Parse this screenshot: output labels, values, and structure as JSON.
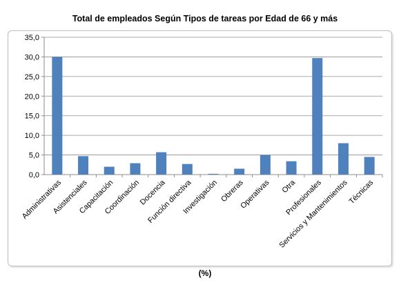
{
  "chart_data": {
    "type": "bar",
    "title": "Total de empleados Según Tipos de tareas por Edad de 66 y más",
    "categories": [
      "Administrativas",
      "Asistenciales",
      "Capacitación",
      "Coordinación",
      "Docencia",
      "Función directiva",
      "Investigación",
      "Obreras",
      "Operativas",
      "Otra",
      "Profesionales",
      "Servicios y Mantenimientos",
      "Técnicas"
    ],
    "values": [
      30.0,
      4.7,
      2.0,
      2.9,
      5.7,
      2.7,
      0.2,
      1.5,
      5.0,
      3.4,
      29.7,
      8.0,
      4.5
    ],
    "yticks": [
      "0,0",
      "5,0",
      "10,0",
      "15,0",
      "20,0",
      "25,0",
      "30,0",
      "35,0"
    ],
    "ylim": [
      0,
      35
    ],
    "grid": true,
    "bar_color": "#4f81bd",
    "caption": "(%)"
  }
}
